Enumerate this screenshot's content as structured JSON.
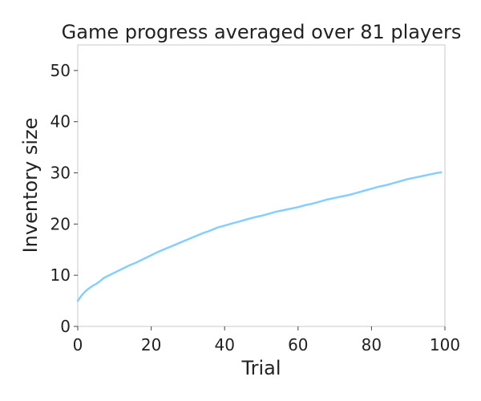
{
  "chart_data": {
    "type": "line",
    "title": "Game progress averaged over 81 players",
    "xlabel": "Trial",
    "ylabel": "Inventory size",
    "xlim": [
      0,
      100
    ],
    "ylim": [
      0,
      55
    ],
    "xticks": [
      0,
      20,
      40,
      60,
      80,
      100
    ],
    "yticks": [
      0,
      10,
      20,
      30,
      40,
      50
    ],
    "grid": false,
    "series": [
      {
        "color": "#87CEFA",
        "x": [
          0,
          1,
          2,
          3,
          4,
          5,
          6,
          7,
          8,
          10,
          12,
          14,
          16,
          18,
          20,
          22,
          24,
          26,
          28,
          30,
          32,
          34,
          36,
          38,
          40,
          42,
          44,
          46,
          48,
          50,
          52,
          54,
          56,
          58,
          60,
          62,
          64,
          66,
          68,
          70,
          72,
          74,
          76,
          78,
          80,
          82,
          84,
          86,
          88,
          90,
          92,
          94,
          96,
          98,
          99
        ],
        "y": [
          5.0,
          6.0,
          6.8,
          7.4,
          7.9,
          8.3,
          8.8,
          9.4,
          9.8,
          10.5,
          11.2,
          11.9,
          12.5,
          13.2,
          13.9,
          14.6,
          15.2,
          15.8,
          16.4,
          17.0,
          17.6,
          18.2,
          18.7,
          19.3,
          19.7,
          20.1,
          20.5,
          20.9,
          21.3,
          21.6,
          22.0,
          22.4,
          22.7,
          23.0,
          23.3,
          23.7,
          24.0,
          24.4,
          24.8,
          25.1,
          25.4,
          25.7,
          26.1,
          26.5,
          26.9,
          27.3,
          27.6,
          28.0,
          28.4,
          28.8,
          29.1,
          29.4,
          29.7,
          30.0,
          30.1
        ]
      }
    ]
  }
}
